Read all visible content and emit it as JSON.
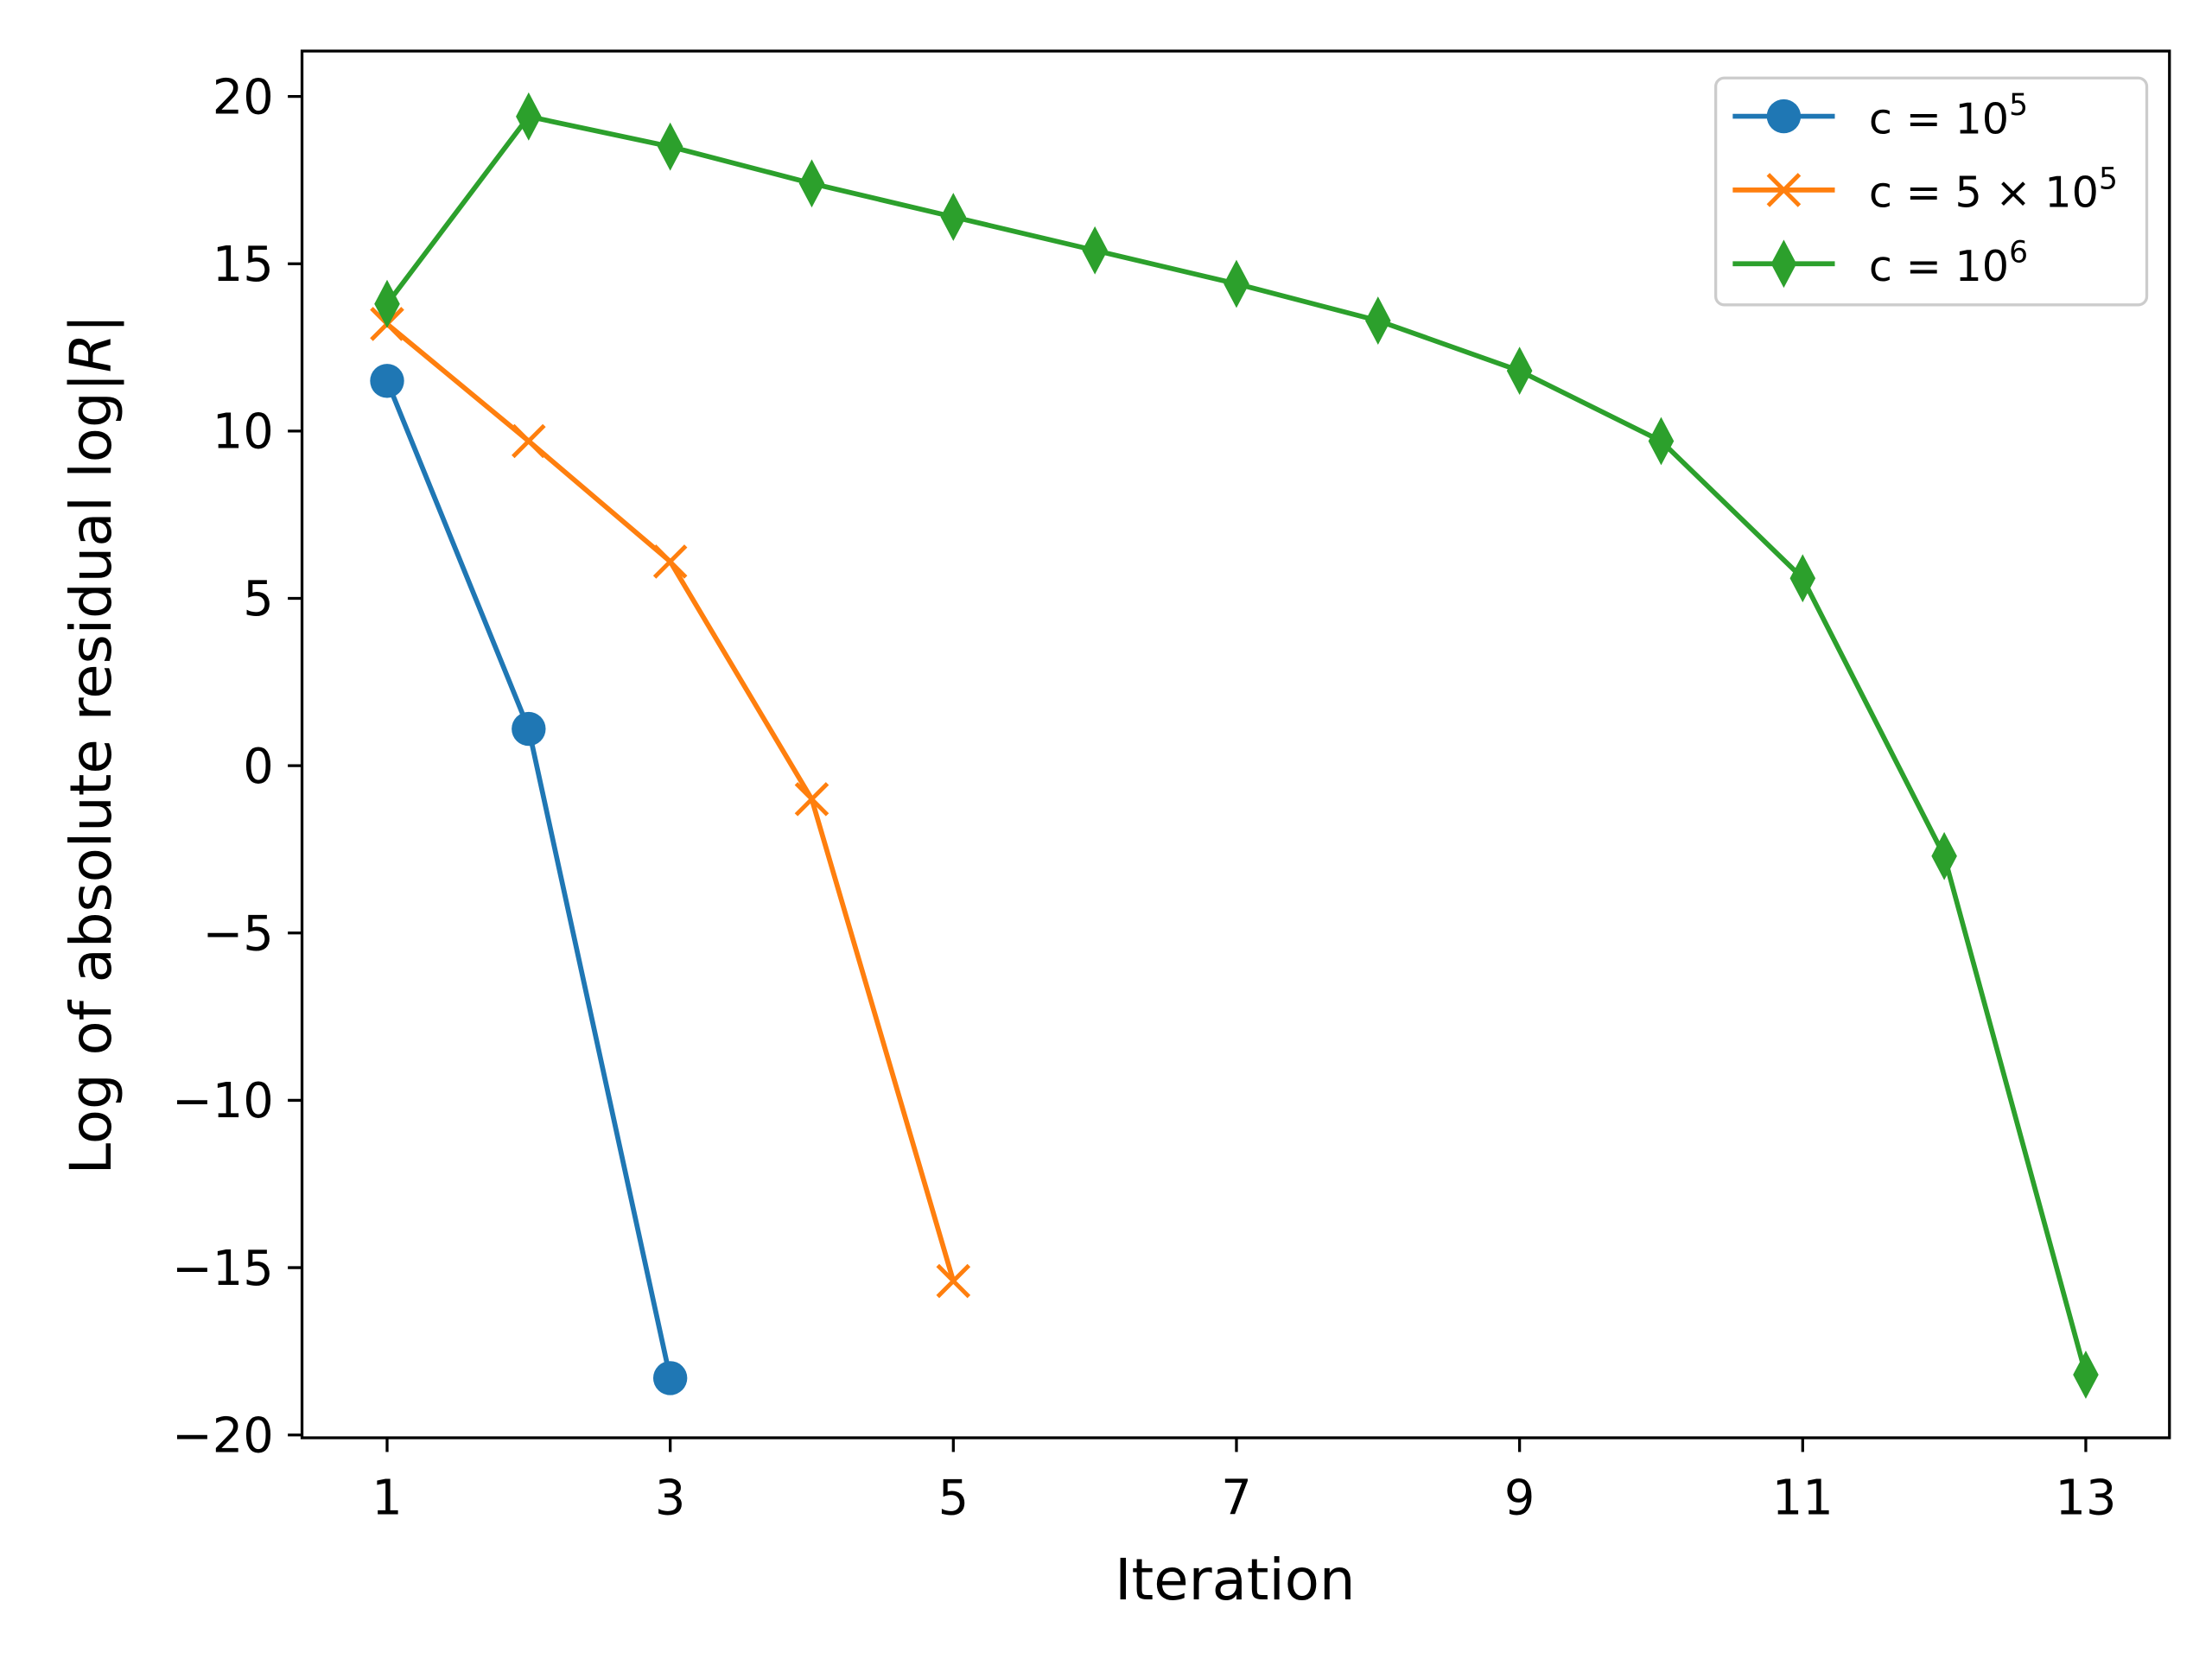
{
  "chart_data": {
    "type": "line",
    "title": "",
    "xlabel": "Iteration",
    "ylabel_prefix": "Log of absolute residual log|",
    "ylabel_var": "R",
    "ylabel_suffix": "|",
    "xlim": [
      0.4,
      13.6
    ],
    "ylim": [
      -20.1,
      21.4
    ],
    "xticks": [
      1,
      3,
      5,
      7,
      9,
      11,
      13
    ],
    "xtick_labels": [
      "1",
      "3",
      "5",
      "7",
      "9",
      "11",
      "13"
    ],
    "yticks": [
      -20,
      -15,
      -10,
      -5,
      0,
      5,
      10,
      15,
      20
    ],
    "ytick_labels": [
      "−20",
      "−15",
      "−10",
      "−5",
      "0",
      "5",
      "10",
      "15",
      "20"
    ],
    "grid": false,
    "legend_position": "top-right",
    "series": [
      {
        "name": "c = 10^5",
        "label_base": "c = 10",
        "label_exp": "5",
        "color": "#1f77b4",
        "marker": "circle",
        "x": [
          1,
          2,
          3
        ],
        "y": [
          11.5,
          1.1,
          -18.3
        ]
      },
      {
        "name": "c = 5 × 10^5",
        "label_base": "c = 5 × 10",
        "label_exp": "5",
        "color": "#ff7f0e",
        "marker": "x",
        "x": [
          1,
          2,
          3,
          4,
          5
        ],
        "y": [
          13.2,
          9.7,
          6.1,
          -1.0,
          -15.4
        ]
      },
      {
        "name": "c = 10^6",
        "label_base": "c = 10",
        "label_exp": "6",
        "color": "#2ca02c",
        "marker": "thin_diamond",
        "x": [
          1,
          2,
          3,
          4,
          5,
          6,
          7,
          8,
          9,
          10,
          11,
          12,
          13
        ],
        "y": [
          13.8,
          19.4,
          18.5,
          17.4,
          16.4,
          15.4,
          14.4,
          13.3,
          11.8,
          9.7,
          5.6,
          -2.7,
          -18.2
        ]
      }
    ]
  }
}
